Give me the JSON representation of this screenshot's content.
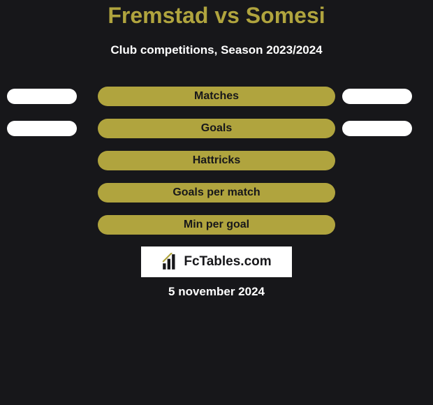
{
  "colors": {
    "background": "#17171a",
    "title": "#b0a43e",
    "subtitle": "#ffffff",
    "bar_fill": "#b0a43e",
    "bar_text": "#17171a",
    "side_ellipse": "#ffffff",
    "logo_bg": "#ffffff",
    "logo_text": "#17171a",
    "footer": "#ffffff"
  },
  "title": {
    "player1": "Fremstad",
    "vs": "vs",
    "player2": "Somesi",
    "fontsize": 32
  },
  "subtitle": {
    "text": "Club competitions, Season 2023/2024",
    "fontsize": 17
  },
  "metrics": [
    {
      "label": "Matches",
      "left_value": 100,
      "right_value": 100,
      "show_sides": true
    },
    {
      "label": "Goals",
      "left_value": 100,
      "right_value": 100,
      "show_sides": true
    },
    {
      "label": "Hattricks",
      "left_value": 0,
      "right_value": 0,
      "show_sides": false
    },
    {
      "label": "Goals per match",
      "left_value": 0,
      "right_value": 0,
      "show_sides": false
    },
    {
      "label": "Min per goal",
      "left_value": 0,
      "right_value": 0,
      "show_sides": false
    }
  ],
  "layout": {
    "row_top_start": 124,
    "row_spacing": 46,
    "center_bar_width": 340,
    "side_bar_max_width": 100,
    "side_bar_height": 22
  },
  "logo": {
    "text": "FcTables.com",
    "fontsize": 19
  },
  "footer": {
    "text": "5 november 2024",
    "fontsize": 17
  }
}
